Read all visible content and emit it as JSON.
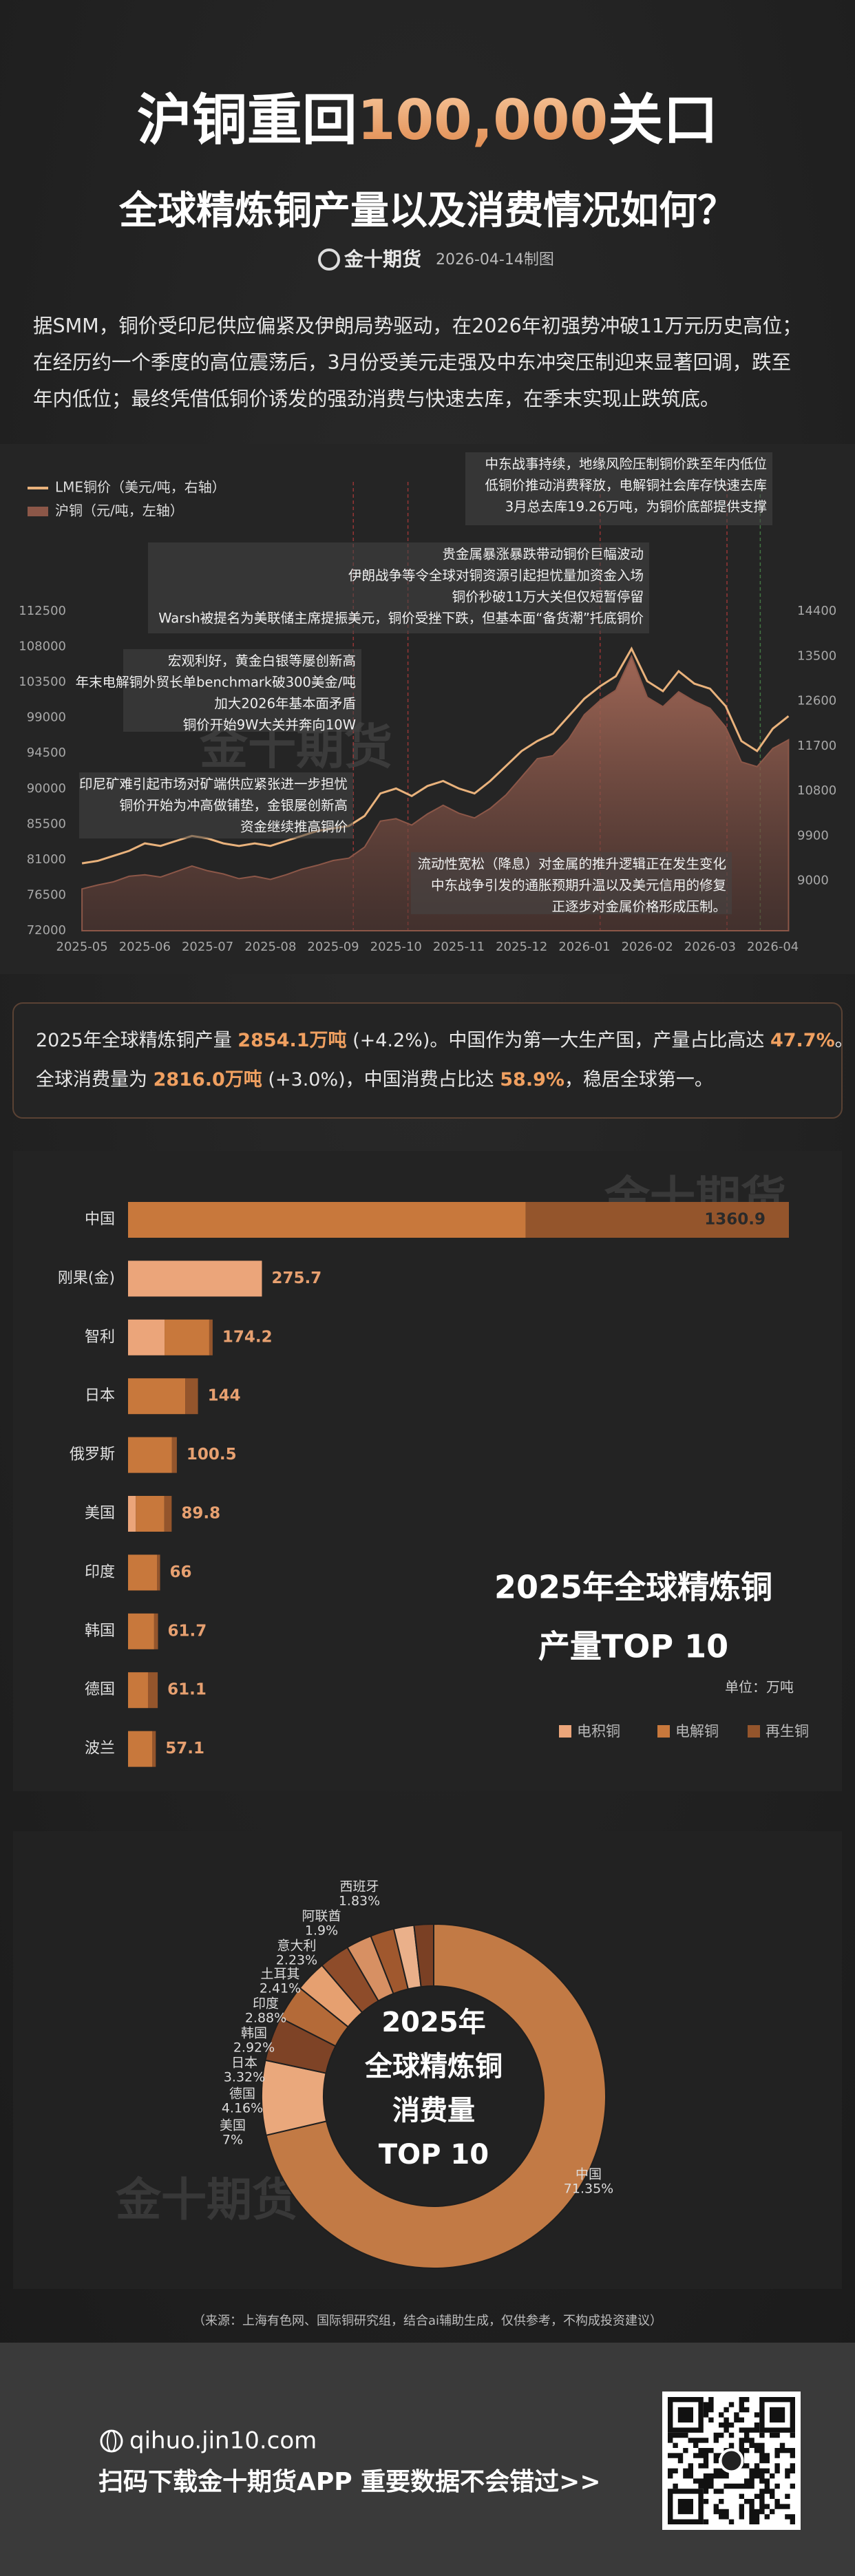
{
  "header": {
    "title": [
      {
        "text": "沪铜重回"
      },
      {
        "text": "100,000",
        "highlight": true
      },
      {
        "text": "关口"
      }
    ],
    "subtitle": "全球精炼铜产量以及消费情况如何？",
    "brand": "金十期货",
    "date": "2026-04-14制图"
  },
  "intro": [
    "据SMM，铜价受印尼供应偏紧及伊朗局势驱动，在2026年初强势冲破11万元历史高位；",
    "在经历约一个季度的高位震荡后，3月份受美元走强及中东冲突压制迎来显著回调，跌至",
    "年内低位；最终凭借低铜价诱发的强劲消费与快速去库，在季末实现止跌筑底。"
  ],
  "chart_data": [
    {
      "type": "line",
      "x": [
        0,
        0.25,
        0.5,
        0.75,
        1,
        1.25,
        1.5,
        1.75,
        2,
        2.25,
        2.5,
        2.75,
        3,
        3.25,
        3.5,
        3.75,
        4,
        4.25,
        4.5,
        4.75,
        5,
        5.25,
        5.5,
        5.75,
        6,
        6.25,
        6.5,
        6.75,
        7,
        7.25,
        7.5,
        7.75,
        8,
        8.25,
        8.5,
        8.75,
        9,
        9.25,
        9.5,
        9.75,
        10,
        10.25,
        10.5,
        10.75,
        11,
        11.25
      ],
      "xlim": [
        -0.1,
        11.3
      ],
      "xticks": [
        {
          "value": 0,
          "label": "2025-05"
        },
        {
          "value": 1,
          "label": "2025-06"
        },
        {
          "value": 2,
          "label": "2025-07"
        },
        {
          "value": 3,
          "label": "2025-08"
        },
        {
          "value": 4,
          "label": "2025-09"
        },
        {
          "value": 5,
          "label": "2025-10"
        },
        {
          "value": 6,
          "label": "2025-11"
        },
        {
          "value": 7,
          "label": "2025-12"
        },
        {
          "value": 8,
          "label": "2026-01"
        },
        {
          "value": 9,
          "label": "2026-02"
        },
        {
          "value": 10,
          "label": "2026-03"
        },
        {
          "value": 11,
          "label": "2026-04"
        }
      ],
      "ylim": [
        72000,
        112500
      ],
      "yticks": [
        72000,
        76500,
        81000,
        85500,
        90000,
        94500,
        99000,
        103500,
        108000,
        112500
      ],
      "y2lim": [
        8000,
        14400
      ],
      "y2ticks": [
        9000,
        9900,
        10800,
        11700,
        12600,
        13500,
        14400
      ],
      "grid": false,
      "series": [
        {
          "name": "LME铜价（美元/吨，右轴）",
          "color": "#e9b27c",
          "axis": "y2",
          "values": [
            9350,
            9400,
            9500,
            9600,
            9750,
            9700,
            9800,
            9900,
            9850,
            9750,
            9700,
            9750,
            9700,
            9800,
            9900,
            10000,
            10050,
            10100,
            10300,
            10750,
            10850,
            10700,
            10900,
            11000,
            10850,
            10750,
            11000,
            11300,
            11600,
            11800,
            11950,
            12300,
            12650,
            12900,
            13100,
            13650,
            13000,
            12800,
            13200,
            12950,
            12850,
            12500,
            11800,
            11600,
            12050,
            12300
          ]
        },
        {
          "name": "沪铜（元/吨，左轴）",
          "color": "#8c5748",
          "fill": true,
          "values": [
            77300,
            77800,
            78200,
            78900,
            79100,
            78800,
            79500,
            80200,
            79600,
            79200,
            78600,
            78900,
            78500,
            79100,
            79800,
            80300,
            80900,
            81200,
            82600,
            85900,
            86200,
            85400,
            86800,
            87900,
            86900,
            86300,
            87500,
            89200,
            91500,
            93800,
            94200,
            96300,
            99400,
            101200,
            102500,
            106800,
            101600,
            100400,
            102300,
            101100,
            100200,
            97800,
            93400,
            92800,
            95100,
            96200
          ]
        }
      ],
      "annotations": [
        [
          "中东战事持续，地缘风险压制铜价跌至年内低位",
          "低铜价推动消费释放，电解铜社会库存快速去库",
          "3月总去库19.26万吨，为铜价底部提供支撑"
        ],
        [
          "贵金属暴涨暴跌带动铜价巨幅波动",
          "伊朗战争等令全球对铜资源引起担忧量加资金入场",
          "铜价秒破11万大关但仅短暂停留",
          "Warsh被提名为美联储主席提振美元，铜价受挫下跌，但基本面“备货潮”托底铜价"
        ],
        [
          "宏观利好，黄金白银等屡创新高",
          "年末电解铜外贸长单benchmark破300美金/吨",
          "加大2026年基本面矛盾",
          "铜价开始9W大关并奔向10W"
        ],
        [
          "印尼矿难引起市场对矿端供应紧张进一步担忧",
          "铜价开始为冲高做铺垫，金银屡创新高",
          "资金继续推高铜价"
        ],
        [
          "流动性宽松（降息）对金属的推升逻辑正在发生变化",
          "中东战争引发的通胀预期升温以及美元信用的修复",
          "正逐步对金属价格形成压制。"
        ]
      ]
    },
    {
      "type": "bar",
      "orientation": "horizontal",
      "stacked": true,
      "title": [
        "2025年全球精炼铜",
        "产量TOP 10"
      ],
      "unit": "单位：万吨",
      "categories": [
        "中国",
        "刚果(金)",
        "智利",
        "日本",
        "俄罗斯",
        "美国",
        "印度",
        "韩国",
        "德国",
        "波兰"
      ],
      "series": [
        {
          "name": "电积铜",
          "color": "#eba57a",
          "values": [
            0,
            275.7,
            75.2,
            0,
            0,
            16,
            0,
            0,
            0,
            0
          ]
        },
        {
          "name": "电解铜",
          "color": "#c8783c",
          "values": [
            819,
            0,
            92,
            118,
            90.5,
            58.8,
            60,
            53.7,
            41.1,
            50.1
          ]
        },
        {
          "name": "再生铜",
          "color": "#94552c",
          "values": [
            541.9,
            0,
            7,
            26,
            10,
            15,
            6,
            8,
            20,
            7
          ]
        }
      ],
      "totals": [
        1360.9,
        275.7,
        174.2,
        144,
        100.5,
        89.8,
        66,
        61.7,
        61.1,
        57.1
      ]
    },
    {
      "type": "pie",
      "donut": true,
      "title": [
        "2025年",
        "全球精炼铜",
        "消费量",
        "TOP 10"
      ],
      "categories": [
        "中国",
        "美国",
        "德国",
        "日本",
        "韩国",
        "印度",
        "土耳其",
        "意大利",
        "阿联酋",
        "西班牙"
      ],
      "values": [
        71.35,
        7,
        4.16,
        3.32,
        2.92,
        2.88,
        2.41,
        2.23,
        1.9,
        1.83
      ],
      "value_labels": [
        "71.35%",
        "7%",
        "4.16%",
        "3.32%",
        "2.92%",
        "2.88%",
        "2.41%",
        "2.23%",
        "1.9%",
        "1.83%"
      ],
      "colors": [
        "#c27a45",
        "#eaa87c",
        "#7e4326",
        "#b46a38",
        "#e6a070",
        "#8e4c2a",
        "#d79063",
        "#a0582e",
        "#eab08a",
        "#7a4024"
      ]
    }
  ],
  "summary": [
    [
      {
        "text": "2025年全球精炼铜产量 "
      },
      {
        "text": "2854.1万吨",
        "highlight": true
      },
      {
        "text": " (+4.2%)。中国作为第一大生产国，产量占比高达 "
      },
      {
        "text": "47.7%",
        "highlight": true
      },
      {
        "text": "。"
      }
    ],
    [
      {
        "text": "全球消费量为 "
      },
      {
        "text": "2816.0万吨",
        "highlight": true
      },
      {
        "text": " (+3.0%)，中国消费占比达 "
      },
      {
        "text": "58.9%",
        "highlight": true
      },
      {
        "text": "，稳居全球第一。"
      }
    ]
  ],
  "source": "（来源：上海有色网、国际铜研究组，结合ai辅助生成，仅供参考，不构成投资建议）",
  "footer": {
    "url": "qihuo.jin10.com",
    "cta": "扫码下载金十期货APP 重要数据不会错过>>"
  }
}
